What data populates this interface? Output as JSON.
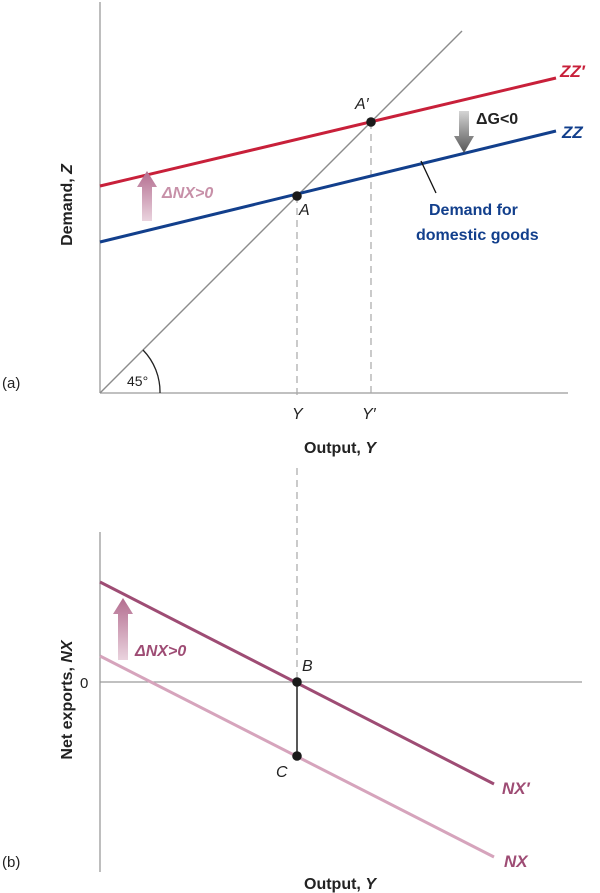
{
  "chart_data": [
    {
      "panel": "(a)",
      "type": "line",
      "xlabel": "Output, ",
      "xlabel_var": "Y",
      "ylabel": "Demand, ",
      "ylabel_var": "Z",
      "x_ticks": [
        "Y",
        "Y′"
      ],
      "angle_label": "45°",
      "series": [
        {
          "name": "ZZ′",
          "color": "#c8203a"
        },
        {
          "name": "ZZ",
          "color": "#123f8c"
        },
        {
          "name": "",
          "color": "#8c8c8c",
          "note": "45-degree line"
        }
      ],
      "points": [
        {
          "label": "A",
          "x": "Y"
        },
        {
          "label": "A′",
          "x": "Y′"
        }
      ],
      "annotations": {
        "delta_nx": "ΔNX>0",
        "delta_g": "ΔG<0",
        "demand_label_line1": "Demand for",
        "demand_label_line2": "domestic goods"
      },
      "colors": {
        "arrow_up": "#c790a8",
        "arrow_down": "#6e6e6e",
        "demand_label": "#123f8c"
      }
    },
    {
      "panel": "(b)",
      "type": "line",
      "xlabel": "Output, ",
      "xlabel_var": "Y",
      "ylabel": "Net exports, ",
      "ylabel_var": "NX",
      "y_ticks": [
        "0"
      ],
      "series": [
        {
          "name": "NX′",
          "color": "#9e4c74"
        },
        {
          "name": "NX",
          "color": "#d6a4bc"
        }
      ],
      "points": [
        {
          "label": "B",
          "y": 0
        },
        {
          "label": "C"
        }
      ],
      "annotations": {
        "delta_nx": "ΔNX>0"
      },
      "colors": {
        "arrow_up": "#c790a8",
        "delta_text": "#9e4c74"
      }
    }
  ]
}
